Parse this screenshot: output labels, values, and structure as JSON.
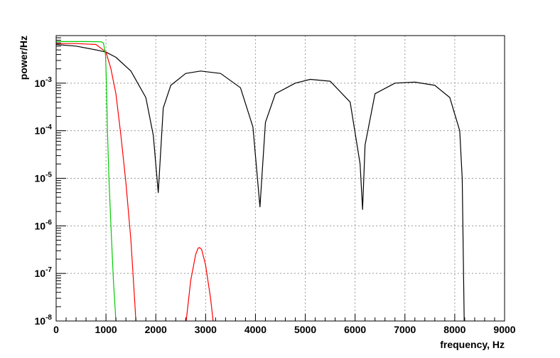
{
  "chart_data": {
    "type": "line",
    "title": "",
    "xlabel": "frequency, Hz",
    "ylabel": "power/Hz",
    "xlim": [
      0,
      9000
    ],
    "ylim": [
      1e-08,
      0.01
    ],
    "yscale": "log",
    "grid": true,
    "x_ticks": [
      0,
      1000,
      2000,
      3000,
      4000,
      5000,
      6000,
      7000,
      8000,
      9000
    ],
    "x_tick_labels": [
      "0",
      "1000",
      "2000",
      "3000",
      "4000",
      "5000",
      "6000",
      "7000",
      "8000",
      "9000"
    ],
    "y_ticks": [
      1e-08,
      1e-07,
      1e-06,
      1e-05,
      0.0001,
      0.001
    ],
    "y_tick_labels": [
      {
        "base": "10",
        "exp": "-8"
      },
      {
        "base": "10",
        "exp": "-7"
      },
      {
        "base": "10",
        "exp": "-6"
      },
      {
        "base": "10",
        "exp": "-5"
      },
      {
        "base": "10",
        "exp": "-4"
      },
      {
        "base": "10",
        "exp": "-3"
      }
    ],
    "series": [
      {
        "color": "#000000",
        "x": [
          0,
          400,
          800,
          1000,
          1200,
          1500,
          1800,
          1950,
          2050,
          2150,
          2300,
          2600,
          2900,
          3300,
          3700,
          3950,
          4090,
          4200,
          4400,
          4800,
          5100,
          5500,
          5900,
          6100,
          6150,
          6200,
          6400,
          6800,
          7200,
          7600,
          7900,
          8100,
          8150,
          8190
        ],
        "y": [
          0.0065,
          0.006,
          0.005,
          0.0045,
          0.0035,
          0.0018,
          0.0005,
          8e-05,
          5e-06,
          0.0003,
          0.0009,
          0.0016,
          0.0018,
          0.0016,
          0.0008,
          0.00012,
          2.5e-06,
          0.00015,
          0.0006,
          0.001,
          0.0012,
          0.0011,
          0.0004,
          2e-05,
          2.2e-06,
          5e-05,
          0.0006,
          0.001,
          0.00105,
          0.0009,
          0.0005,
          0.0001,
          1e-05,
          1e-08
        ]
      },
      {
        "color": "#ff0000",
        "x": [
          0,
          400,
          800,
          1000,
          1100,
          1200,
          1300,
          1400,
          1500,
          1560,
          1600
        ],
        "y": [
          0.0068,
          0.0068,
          0.0065,
          0.0045,
          0.002,
          0.0006,
          8e-05,
          8e-06,
          5e-07,
          5e-08,
          1e-08
        ]
      },
      {
        "color": "#ff0000",
        "x": [
          2610,
          2700,
          2800,
          2850,
          2880,
          2920,
          3000,
          3100,
          3150
        ],
        "y": [
          1e-08,
          7e-08,
          2.5e-07,
          3.4e-07,
          3.5e-07,
          3.2e-07,
          1.5e-07,
          3e-08,
          1e-08
        ]
      },
      {
        "color": "#00cc00",
        "x": [
          0,
          300,
          600,
          900,
          950,
          990,
          1010,
          1030,
          1060,
          1100,
          1150,
          1200
        ],
        "y": [
          0.0075,
          0.0075,
          0.0075,
          0.0074,
          0.007,
          0.004,
          0.001,
          0.0001,
          1e-05,
          1e-06,
          7e-08,
          1e-08
        ]
      }
    ]
  }
}
